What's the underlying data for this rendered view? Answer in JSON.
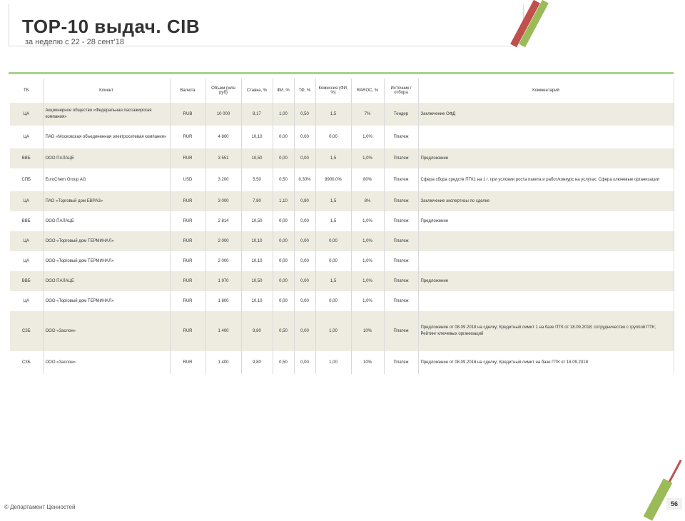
{
  "header": {
    "title": "TOP-10 выдач. CIB",
    "subtitle": "за неделю с 22 - 28 сент'18"
  },
  "colors": {
    "accent_green": "#a9d18e",
    "row_shade": "#eeece1",
    "stripe_red": "#c0504d",
    "stripe_green": "#9bbb59"
  },
  "table": {
    "headers": [
      "ТБ",
      "Клиент",
      "Валюта",
      "Объем (млн руб)",
      "Ставка, %",
      "ФИ, %",
      "ТФ, %",
      "Комиссия (ФИ, %)",
      "RAROC, %",
      "Источник / отбора",
      "Комментарий"
    ],
    "rows": [
      [
        "ЦА",
        "Акционерное общество «Федеральная пассажирская компания»",
        "RUB",
        "10 000",
        "8,17",
        "1,00",
        "0,50",
        "1,5",
        "7%",
        "Тендер",
        "Заключение ОФД"
      ],
      [
        "ЦА",
        "ПАО «Московская объединенная электросетевая компания»",
        "RUR",
        "4 800",
        "10,10",
        "0,00",
        "0,00",
        "0,00",
        "1,0%",
        "Платеж",
        ""
      ],
      [
        "ВВБ",
        "ООО ПАЛАЦЕ",
        "RUR",
        "3 551",
        "10,50",
        "0,00",
        "0,00",
        "1,5",
        "1,0%",
        "Платеж",
        "Предложение"
      ],
      [
        "СПБ",
        "EuroChem Group AG",
        "USD",
        "3 200",
        "5,50",
        "0,50",
        "0,30%",
        "9900,0%",
        "80%",
        "Платеж",
        "Сфера сбора средств ПТК1 на 1 г. при условии роста пакета и работ/конкурс на услугах; Сфера ключевые организации"
      ],
      [
        "ЦА",
        "ПАО «Торговый дом ЕВРАЗ»",
        "RUR",
        "3 000",
        "7,80",
        "1,10",
        "0,80",
        "1,5",
        "8%",
        "Платеж",
        "Заключение экспертизы по сделке"
      ],
      [
        "ВВБ",
        "ООО ПАЛАЦЕ",
        "RUR",
        "2 814",
        "10,50",
        "0,00",
        "0,00",
        "1,5",
        "1,0%",
        "Платеж",
        "Предложение"
      ],
      [
        "ЦА",
        "ООО «Торговый дом ТЕРМИНАЛ»",
        "RUR",
        "2 000",
        "10,10",
        "0,00",
        "0,00",
        "0,00",
        "1,0%",
        "Платеж",
        ""
      ],
      [
        "ЦА",
        "ООО «Торговый дом ТЕРМИНАЛ»",
        "RUR",
        "2 000",
        "10,10",
        "0,00",
        "0,00",
        "0,00",
        "1,0%",
        "Платеж",
        ""
      ],
      [
        "ВВБ",
        "ООО ПАЛАЦЕ",
        "RUR",
        "1 970",
        "10,50",
        "0,00",
        "0,00",
        "1,5",
        "1,0%",
        "Платеж",
        "Предложение"
      ],
      [
        "ЦА",
        "ООО «Торговый дом ТЕРМИНАЛ»",
        "RUR",
        "1 800",
        "10,10",
        "0,00",
        "0,00",
        "0,00",
        "1,0%",
        "Платеж",
        ""
      ],
      [
        "СЗБ",
        "ООО «Заслон»",
        "RUR",
        "1 400",
        "9,80",
        "0,50",
        "0,00",
        "1,00",
        "10%",
        "Платеж",
        "Предложение от 08.09.2018 на сделку; Кредитный лимит 1 на базе ПТК от 18.09.2018; сотрудничество с группой ПТК; Рейтинг ключевых организаций"
      ],
      [
        "СЗБ",
        "ООО «Заслон»",
        "RUR",
        "1 400",
        "9,80",
        "0,50",
        "0,00",
        "1,00",
        "10%",
        "Платеж",
        "Предложение от 08.09.2018 на сделку; Кредитный лимит на базе ПТК от 18.09.2018"
      ]
    ]
  },
  "footer": {
    "text": "© Департамент Ценностей",
    "page": "56"
  }
}
